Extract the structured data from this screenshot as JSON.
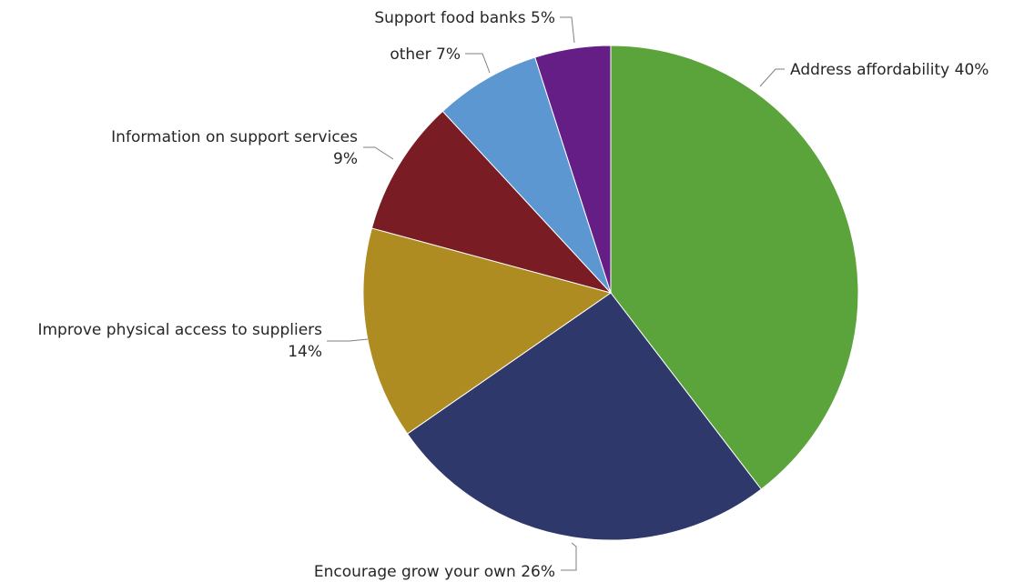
{
  "chart_data": {
    "type": "pie",
    "title": "",
    "slices": [
      {
        "label": "Address affordability",
        "value": 40,
        "value_text": "40%",
        "color": "#5ba43b"
      },
      {
        "label": "Encourage grow your own",
        "value": 26,
        "value_text": "26%",
        "color": "#2e386b"
      },
      {
        "label": "Improve physical access to suppliers",
        "value": 14,
        "value_text": "14%",
        "color": "#ae8c22"
      },
      {
        "label": "Information on support services",
        "value": 9,
        "value_text": "9%",
        "color": "#7a1c24"
      },
      {
        "label": "other",
        "value": 7,
        "value_text": "7%",
        "color": "#5d97d2"
      },
      {
        "label": "Support food banks",
        "value": 5,
        "value_text": "5%",
        "color": "#641e86"
      }
    ],
    "start_angle": "12 o'clock",
    "direction": "clockwise",
    "legend": "none",
    "data_labels": "outside with leader lines"
  }
}
